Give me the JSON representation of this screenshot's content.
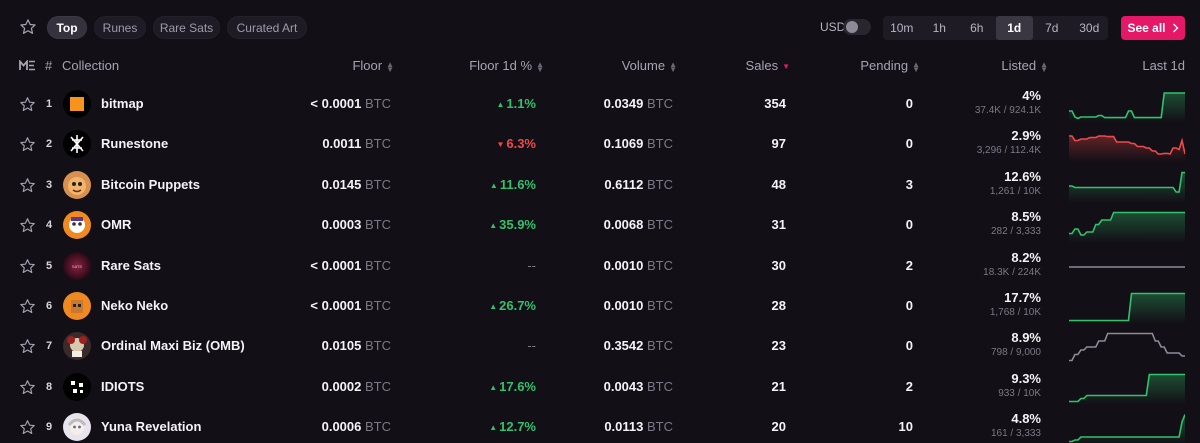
{
  "tabs": [
    "Top",
    "Runes",
    "Rare Sats",
    "Curated Art"
  ],
  "currency_toggle_label": "USD",
  "time_ranges": [
    "10m",
    "1h",
    "6h",
    "1d",
    "7d",
    "30d"
  ],
  "active_time_range": "1d",
  "see_all_label": "See all",
  "colors": {
    "accent": "#e51767",
    "up": "#31c26b",
    "down": "#ef4a4a",
    "flat": "#8f8a98"
  },
  "columns": {
    "rank": "#",
    "collection": "Collection",
    "floor": "Floor",
    "floor_change": "Floor 1d %",
    "volume": "Volume",
    "sales": "Sales",
    "pending": "Pending",
    "listed": "Listed",
    "last": "Last 1d"
  },
  "currency_unit": "BTC",
  "rows": [
    {
      "rank": "1",
      "name": "bitmap",
      "icon": "bitmap-orange-square",
      "floor": "< 0.0001",
      "change": "1.1%",
      "trend": "up",
      "volume": "0.0349",
      "sales": "354",
      "pending": "0",
      "listed_pct": "4%",
      "listed_counts": "37.4K / 924.1K",
      "spark": [
        70,
        70,
        90,
        95,
        90,
        90,
        90,
        90,
        90,
        90,
        85,
        85,
        92,
        92,
        92,
        92,
        92,
        92,
        92,
        92,
        70,
        70,
        92,
        92,
        92,
        92,
        92,
        92,
        92,
        92,
        92,
        92,
        10,
        10,
        10,
        10,
        10,
        10,
        10,
        10
      ]
    },
    {
      "rank": "2",
      "name": "Runestone",
      "icon": "runestone-glyph",
      "floor": "0.0011",
      "change": "6.3%",
      "trend": "down",
      "volume": "0.1069",
      "sales": "97",
      "pending": "0",
      "listed_pct": "2.9%",
      "listed_counts": "3,296 / 112.4K",
      "spark": [
        20,
        20,
        35,
        35,
        30,
        30,
        30,
        25,
        25,
        25,
        20,
        20,
        20,
        22,
        22,
        22,
        40,
        40,
        40,
        40,
        40,
        45,
        45,
        55,
        55,
        55,
        60,
        60,
        70,
        70,
        80,
        80,
        78,
        78,
        80,
        60,
        60,
        65,
        35,
        80
      ]
    },
    {
      "rank": "3",
      "name": "Bitcoin Puppets",
      "icon": "puppet-avatar",
      "floor": "0.0145",
      "change": "11.6%",
      "trend": "up",
      "volume": "0.6112",
      "sales": "48",
      "pending": "3",
      "listed_pct": "12.6%",
      "listed_counts": "1,261 / 10K",
      "spark": [
        50,
        50,
        55,
        55,
        55,
        55,
        55,
        55,
        55,
        55,
        55,
        55,
        55,
        55,
        55,
        55,
        55,
        55,
        55,
        55,
        55,
        55,
        55,
        55,
        55,
        55,
        55,
        55,
        55,
        55,
        55,
        55,
        55,
        55,
        55,
        55,
        70,
        70,
        5,
        5
      ]
    },
    {
      "rank": "4",
      "name": "OMR",
      "icon": "omr-avatar",
      "floor": "0.0003",
      "change": "35.9%",
      "trend": "up",
      "volume": "0.0068",
      "sales": "31",
      "pending": "0",
      "listed_pct": "8.5%",
      "listed_counts": "282 / 3,333",
      "spark": [
        75,
        75,
        60,
        60,
        80,
        80,
        70,
        70,
        70,
        45,
        45,
        30,
        30,
        30,
        30,
        5,
        5,
        5,
        5,
        5,
        5,
        5,
        5,
        5,
        5,
        5,
        5,
        5,
        5,
        5,
        5,
        5,
        5,
        5,
        5,
        5,
        5,
        5,
        5,
        5
      ]
    },
    {
      "rank": "5",
      "name": "Rare Sats",
      "icon": "rare-sats-orb",
      "floor": "< 0.0001",
      "change": "--",
      "trend": "flat",
      "volume": "0.0010",
      "sales": "30",
      "pending": "2",
      "listed_pct": "8.2%",
      "listed_counts": "18.3K / 224K",
      "spark": [
        50,
        50,
        50,
        50,
        50,
        50,
        50,
        50,
        50,
        50,
        50,
        50,
        50,
        50,
        50,
        50,
        50,
        50,
        50,
        50,
        50,
        50,
        50,
        50,
        50,
        50,
        50,
        50,
        50,
        50,
        50,
        50,
        50,
        50,
        50,
        50,
        50,
        50,
        50,
        50
      ]
    },
    {
      "rank": "6",
      "name": "Neko Neko",
      "icon": "neko-avatar",
      "floor": "< 0.0001",
      "change": "26.7%",
      "trend": "up",
      "volume": "0.0010",
      "sales": "28",
      "pending": "0",
      "listed_pct": "17.7%",
      "listed_counts": "1,768 / 10K",
      "spark": [
        95,
        95,
        95,
        95,
        95,
        95,
        95,
        95,
        95,
        95,
        95,
        95,
        95,
        95,
        95,
        95,
        95,
        95,
        95,
        95,
        95,
        5,
        5,
        5,
        5,
        5,
        5,
        5,
        5,
        5,
        5,
        5,
        5,
        5,
        5,
        5,
        5,
        5,
        5,
        5
      ]
    },
    {
      "rank": "7",
      "name": "Ordinal Maxi Biz (OMB)",
      "icon": "omb-avatar",
      "floor": "0.0105",
      "change": "--",
      "trend": "flat",
      "volume": "0.3542",
      "sales": "23",
      "pending": "0",
      "listed_pct": "8.9%",
      "listed_counts": "798 / 9,000",
      "spark": [
        95,
        95,
        75,
        75,
        60,
        60,
        50,
        50,
        50,
        50,
        30,
        30,
        30,
        5,
        5,
        5,
        5,
        5,
        5,
        5,
        5,
        5,
        5,
        5,
        5,
        5,
        5,
        5,
        5,
        30,
        30,
        50,
        50,
        70,
        70,
        70,
        70,
        70,
        80,
        80
      ]
    },
    {
      "rank": "8",
      "name": "IDIOTS",
      "icon": "idiots-dots",
      "floor": "0.0002",
      "change": "17.6%",
      "trend": "up",
      "volume": "0.0043",
      "sales": "21",
      "pending": "2",
      "listed_pct": "9.3%",
      "listed_counts": "933 / 10K",
      "spark": [
        95,
        95,
        95,
        95,
        85,
        85,
        75,
        75,
        75,
        75,
        75,
        75,
        75,
        75,
        75,
        75,
        75,
        75,
        75,
        75,
        75,
        75,
        75,
        75,
        75,
        75,
        75,
        5,
        5,
        5,
        5,
        5,
        5,
        5,
        5,
        5,
        5,
        5,
        5,
        5
      ]
    },
    {
      "rank": "9",
      "name": "Yuna Revelation",
      "icon": "yuna-avatar",
      "floor": "0.0006",
      "change": "12.7%",
      "trend": "up",
      "volume": "0.0113",
      "sales": "20",
      "pending": "10",
      "listed_pct": "4.8%",
      "listed_counts": "161 / 3,333",
      "spark": [
        95,
        95,
        90,
        90,
        80,
        80,
        80,
        80,
        80,
        80,
        80,
        80,
        80,
        80,
        80,
        80,
        80,
        80,
        80,
        80,
        80,
        80,
        80,
        80,
        80,
        80,
        80,
        80,
        80,
        80,
        80,
        80,
        80,
        80,
        80,
        80,
        80,
        80,
        30,
        5
      ]
    }
  ]
}
